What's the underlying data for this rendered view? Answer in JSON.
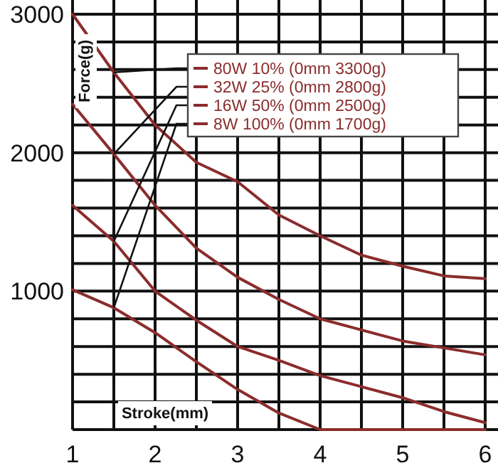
{
  "chart_data": {
    "type": "line",
    "xlabel": "Stroke(mm)",
    "ylabel": "Force(g)",
    "xlim": [
      1,
      6
    ],
    "ylim": [
      0,
      3000
    ],
    "xticks": [
      1,
      {
        "value": 1.5,
        "label": null
      },
      2,
      {
        "value": 2.5,
        "label": null
      },
      3,
      {
        "value": 3.5,
        "label": null
      },
      4,
      {
        "value": 4.5,
        "label": null
      },
      5,
      {
        "value": 5.5,
        "label": null
      },
      6
    ],
    "yticks": [
      {
        "value": 200,
        "label": null
      },
      {
        "value": 400,
        "label": null
      },
      {
        "value": 600,
        "label": null
      },
      {
        "value": 800,
        "label": null
      },
      1000,
      {
        "value": 1200,
        "label": null
      },
      {
        "value": 1400,
        "label": null
      },
      {
        "value": 1600,
        "label": null
      },
      {
        "value": 1800,
        "label": null
      },
      2000,
      {
        "value": 2200,
        "label": null
      },
      {
        "value": 2400,
        "label": null
      },
      {
        "value": 2600,
        "label": null
      },
      {
        "value": 2800,
        "label": null
      },
      3000
    ],
    "grid": true,
    "legend": "top right",
    "marker": "none",
    "line_style": "solid",
    "x": [
      1,
      1.5,
      2,
      2.5,
      3,
      3.5,
      4,
      4.5,
      5,
      5.5,
      6
    ],
    "series": [
      {
        "name": "80W 10% (0mm 3300g)",
        "color": "#8b2c2c",
        "values": [
          3000,
          2580,
          2200,
          1930,
          1790,
          1550,
          1400,
          1260,
          1180,
          1110,
          1090
        ]
      },
      {
        "name": "32W 25% (0mm 2800g)",
        "color": "#8b2c2c",
        "values": [
          2350,
          1990,
          1620,
          1310,
          1100,
          940,
          800,
          720,
          640,
          590,
          540
        ]
      },
      {
        "name": "16W 50% (0mm 2500g)",
        "color": "#8b2c2c",
        "values": [
          1620,
          1360,
          1000,
          790,
          600,
          500,
          390,
          310,
          230,
          130,
          50
        ]
      },
      {
        "name": "8W 100% (0mm 1700g)",
        "color": "#8b2c2c",
        "values": [
          1010,
          880,
          700,
          490,
          290,
          120,
          0,
          0,
          0,
          0,
          0
        ]
      }
    ]
  }
}
